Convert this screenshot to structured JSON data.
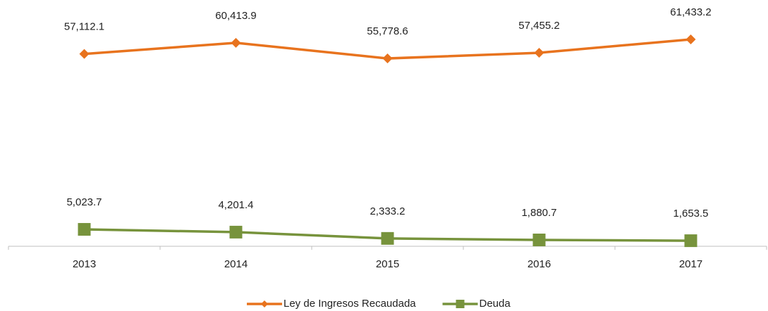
{
  "chart_data": {
    "type": "line",
    "categories": [
      "2013",
      "2014",
      "2015",
      "2016",
      "2017"
    ],
    "series": [
      {
        "name": "Ley de Ingresos Recaudada",
        "color": "#e8731e",
        "marker": "diamond",
        "values": [
          57112.1,
          60413.9,
          55778.6,
          57455.2,
          61433.2
        ],
        "value_labels": [
          "57,112.1",
          "60,413.9",
          "55,778.6",
          "57,455.2",
          "61,433.2"
        ]
      },
      {
        "name": "Deuda",
        "color": "#77933c",
        "marker": "square",
        "values": [
          5023.7,
          4201.4,
          2333.2,
          1880.7,
          1653.5
        ],
        "value_labels": [
          "5,023.7",
          "4,201.4",
          "2,333.2",
          "1,880.7",
          "1,653.5"
        ]
      }
    ],
    "ylim": [
      0,
      70000
    ],
    "legend": "bottom"
  }
}
